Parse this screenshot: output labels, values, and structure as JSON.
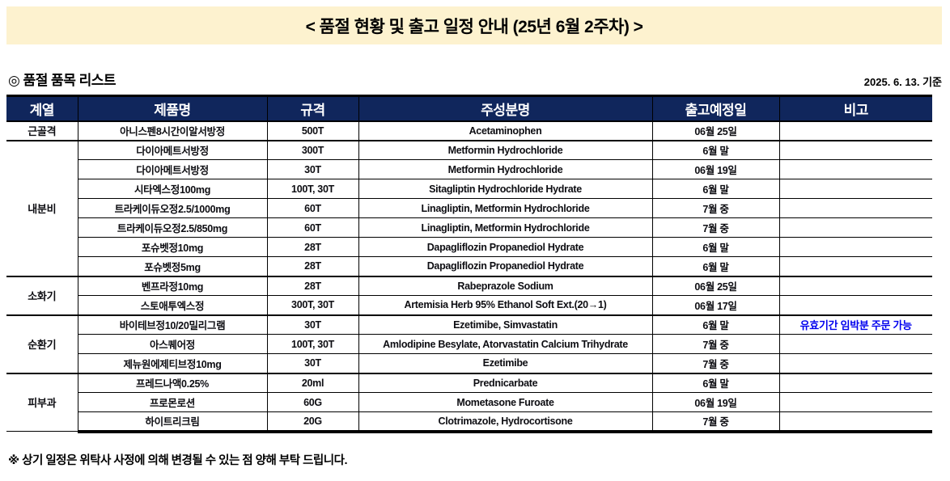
{
  "banner": {
    "title": "< 품절 현황 및 출고 일정 안내 (25년 6월 2주차) >"
  },
  "section": {
    "title": "◎ 품절 품목 리스트",
    "as_of": "2025. 6. 13. 기준"
  },
  "colors": {
    "banner_bg": "#FDF2CF",
    "header_bg": "#10265C",
    "remark_blue": "#0000EE"
  },
  "table": {
    "columns": [
      "계열",
      "제품명",
      "규격",
      "주성분명",
      "출고예정일",
      "비고"
    ],
    "groups": [
      {
        "category": "근골격",
        "rows": [
          {
            "product": "아니스펜8시간이알서방정",
            "spec": "500T",
            "ingredient": "Acetaminophen",
            "ship_date": "06월 25일",
            "remark": ""
          }
        ]
      },
      {
        "category": "내분비",
        "rows": [
          {
            "product": "다이아메트서방정",
            "spec": "300T",
            "ingredient": "Metformin Hydrochloride",
            "ship_date": "6월 말",
            "remark": ""
          },
          {
            "product": "다이아메트서방정",
            "spec": "30T",
            "ingredient": "Metformin Hydrochloride",
            "ship_date": "06월 19일",
            "remark": ""
          },
          {
            "product": "시타엑스정100mg",
            "spec": "100T, 30T",
            "ingredient": "Sitagliptin Hydrochloride Hydrate",
            "ship_date": "6월 말",
            "remark": ""
          },
          {
            "product": "트라케이듀오정2.5/1000mg",
            "spec": "60T",
            "ingredient": "Linagliptin, Metformin Hydrochloride",
            "ship_date": "7월 중",
            "remark": ""
          },
          {
            "product": "트라케이듀오정2.5/850mg",
            "spec": "60T",
            "ingredient": "Linagliptin, Metformin Hydrochloride",
            "ship_date": "7월 중",
            "remark": ""
          },
          {
            "product": "포슈벳정10mg",
            "spec": "28T",
            "ingredient": "Dapagliflozin Propanediol Hydrate",
            "ship_date": "6월 말",
            "remark": ""
          },
          {
            "product": "포슈벳정5mg",
            "spec": "28T",
            "ingredient": "Dapagliflozin Propanediol Hydrate",
            "ship_date": "6월 말",
            "remark": ""
          }
        ]
      },
      {
        "category": "소화기",
        "rows": [
          {
            "product": "벤프라정10mg",
            "spec": "28T",
            "ingredient": "Rabeprazole Sodium",
            "ship_date": "06월 25일",
            "remark": ""
          },
          {
            "product": "스토애투엑스정",
            "spec": "300T, 30T",
            "ingredient": "Artemisia Herb 95% Ethanol Soft Ext.(20→1)",
            "ship_date": "06월 17일",
            "remark": ""
          }
        ]
      },
      {
        "category": "순환기",
        "rows": [
          {
            "product": "바이테브정10/20밀리그램",
            "spec": "30T",
            "ingredient": "Ezetimibe, Simvastatin",
            "ship_date": "6월 말",
            "remark": "유효기간 임박분 주문 가능"
          },
          {
            "product": "아스퀘어정",
            "spec": "100T, 30T",
            "ingredient": "Amlodipine Besylate, Atorvastatin Calcium Trihydrate",
            "ship_date": "7월 중",
            "remark": ""
          },
          {
            "product": "제뉴원에제티브정10mg",
            "spec": "30T",
            "ingredient": "Ezetimibe",
            "ship_date": "7월 중",
            "remark": ""
          }
        ]
      },
      {
        "category": "피부과",
        "rows": [
          {
            "product": "프레드나액0.25%",
            "spec": "20ml",
            "ingredient": "Prednicarbate",
            "ship_date": "6월 말",
            "remark": ""
          },
          {
            "product": "프로몬로션",
            "spec": "60G",
            "ingredient": "Mometasone Furoate",
            "ship_date": "06월 19일",
            "remark": ""
          },
          {
            "product": "하이트리크림",
            "spec": "20G",
            "ingredient": "Clotrimazole, Hydrocortisone",
            "ship_date": "7월 중",
            "remark": ""
          }
        ]
      }
    ]
  },
  "footer": {
    "note": "※ 상기 일정은 위탁사 사정에 의해 변경될 수 있는 점 양해 부탁 드립니다."
  }
}
